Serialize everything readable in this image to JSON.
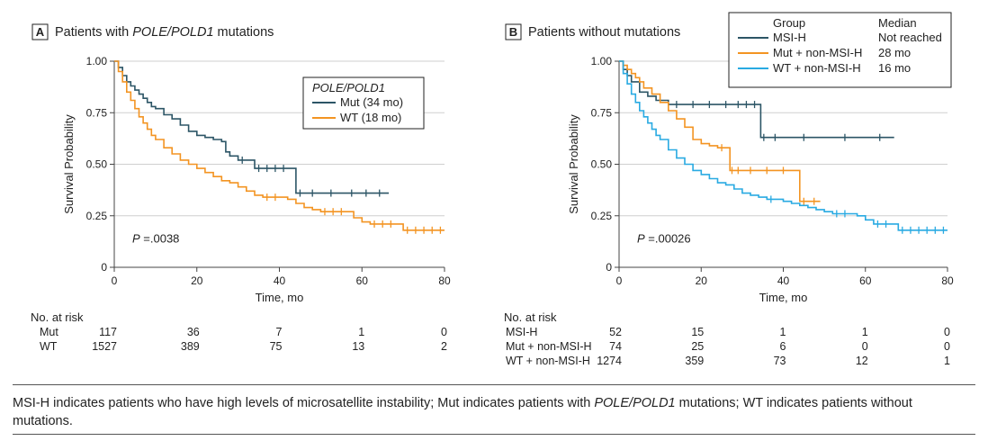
{
  "chart_data": [
    {
      "type": "line",
      "panel_letter": "A",
      "title": "Patients with ",
      "title_italic": "POLE/POLD1",
      "title_suffix": " mutations",
      "xlabel": "Time, mo",
      "ylabel": "Survival Probability",
      "xlim": [
        0,
        80
      ],
      "ylim": [
        0,
        1
      ],
      "xticks": [
        "0",
        "20",
        "40",
        "60",
        "80"
      ],
      "yticks": [
        "0",
        "0.25",
        "0.50",
        "0.75",
        "1.00"
      ],
      "grid": "horizontal",
      "legend": {
        "title": "POLE/POLD1",
        "placement": "top-right",
        "entries": [
          {
            "name": "Mut (34 mo)",
            "color": "#2c5566"
          },
          {
            "name": "WT (18 mo)",
            "color": "#f39422"
          }
        ]
      },
      "annotation_p": "P",
      "annotation_value": " =.0038",
      "series": [
        {
          "name": "Mut",
          "color": "#2c5566",
          "x": [
            0,
            1,
            2,
            3,
            4,
            5,
            6,
            7,
            8,
            9,
            10,
            12,
            14,
            16,
            18,
            20,
            22,
            24,
            26,
            27,
            28,
            30,
            32,
            34,
            36,
            38,
            40,
            42,
            44,
            46,
            50,
            55,
            60,
            62,
            66.5
          ],
          "y": [
            1.0,
            0.97,
            0.93,
            0.9,
            0.88,
            0.86,
            0.84,
            0.82,
            0.8,
            0.78,
            0.77,
            0.74,
            0.72,
            0.69,
            0.66,
            0.64,
            0.63,
            0.62,
            0.61,
            0.56,
            0.54,
            0.52,
            0.52,
            0.48,
            0.48,
            0.48,
            0.48,
            0.48,
            0.36,
            0.36,
            0.36,
            0.36,
            0.36,
            0.36,
            0.36
          ]
        },
        {
          "name": "WT",
          "color": "#f39422",
          "x": [
            0,
            1,
            2,
            3,
            4,
            5,
            6,
            7,
            8,
            9,
            10,
            12,
            14,
            16,
            18,
            20,
            22,
            24,
            26,
            28,
            30,
            32,
            34,
            36,
            38,
            40,
            42,
            44,
            46,
            48,
            50,
            52,
            54,
            56,
            58,
            60,
            62,
            64,
            66,
            68,
            70,
            72,
            74,
            76,
            78,
            80
          ],
          "y": [
            1.0,
            0.95,
            0.9,
            0.85,
            0.81,
            0.77,
            0.73,
            0.7,
            0.67,
            0.64,
            0.62,
            0.58,
            0.55,
            0.52,
            0.5,
            0.48,
            0.46,
            0.44,
            0.42,
            0.41,
            0.39,
            0.37,
            0.35,
            0.34,
            0.34,
            0.34,
            0.33,
            0.31,
            0.29,
            0.28,
            0.27,
            0.27,
            0.27,
            0.27,
            0.24,
            0.22,
            0.21,
            0.21,
            0.21,
            0.21,
            0.18,
            0.18,
            0.18,
            0.18,
            0.18,
            0.18
          ]
        }
      ],
      "risk_table": {
        "header": "No. at risk",
        "times": [
          0,
          20,
          40,
          60,
          80
        ],
        "rows": [
          {
            "label": "Mut",
            "values": [
              "117",
              "36",
              "7",
              "1",
              "0"
            ]
          },
          {
            "label": "WT",
            "values": [
              "1527",
              "389",
              "75",
              "13",
              "2"
            ]
          }
        ]
      }
    },
    {
      "type": "line",
      "panel_letter": "B",
      "title": "Patients without mutations",
      "title_italic": "",
      "title_suffix": "",
      "xlabel": "Time, mo",
      "ylabel": "Survival Probability",
      "xlim": [
        0,
        80
      ],
      "ylim": [
        0,
        1
      ],
      "xticks": [
        "0",
        "20",
        "40",
        "60",
        "80"
      ],
      "yticks": [
        "0",
        "0.25",
        "0.50",
        "0.75",
        "1.00"
      ],
      "grid": "horizontal",
      "legend": {
        "title": "Group",
        "median_title": "Median",
        "placement": "top-right",
        "entries": [
          {
            "name": "MSI-H",
            "median": "Not reached",
            "color": "#2c5566"
          },
          {
            "name": "Mut + non-MSI-H",
            "median": "28 mo",
            "color": "#f39422"
          },
          {
            "name": "WT + non-MSI-H",
            "median": "16 mo",
            "color": "#29aae2"
          }
        ]
      },
      "annotation_p": "P",
      "annotation_value": " =.00026",
      "series": [
        {
          "name": "MSI-H",
          "color": "#2c5566",
          "x": [
            0,
            1,
            2,
            3,
            5,
            7,
            9,
            12,
            16,
            20,
            24,
            28,
            30,
            32,
            34,
            34.5,
            36,
            40,
            50,
            60,
            67
          ],
          "y": [
            1.0,
            0.96,
            0.93,
            0.9,
            0.85,
            0.83,
            0.81,
            0.79,
            0.79,
            0.79,
            0.79,
            0.79,
            0.79,
            0.79,
            0.79,
            0.63,
            0.63,
            0.63,
            0.63,
            0.63,
            0.63
          ]
        },
        {
          "name": "Mut + non-MSI-H",
          "color": "#f39422",
          "x": [
            0,
            1,
            2,
            3,
            4,
            5,
            6,
            8,
            10,
            12,
            14,
            16,
            18,
            20,
            22,
            24,
            26,
            27,
            28,
            30,
            34,
            38,
            42,
            44,
            46,
            49
          ],
          "y": [
            1.0,
            0.98,
            0.96,
            0.94,
            0.92,
            0.9,
            0.87,
            0.84,
            0.8,
            0.76,
            0.72,
            0.68,
            0.62,
            0.6,
            0.59,
            0.58,
            0.58,
            0.47,
            0.47,
            0.47,
            0.47,
            0.47,
            0.47,
            0.32,
            0.32,
            0.32
          ]
        },
        {
          "name": "WT + non-MSI-H",
          "color": "#29aae2",
          "x": [
            0,
            1,
            2,
            3,
            4,
            5,
            6,
            7,
            8,
            9,
            10,
            12,
            14,
            16,
            18,
            20,
            22,
            24,
            26,
            28,
            30,
            32,
            34,
            36,
            38,
            40,
            42,
            44,
            46,
            48,
            50,
            52,
            54,
            56,
            58,
            60,
            62,
            64,
            66,
            68,
            70,
            72,
            74,
            76,
            78,
            80
          ],
          "y": [
            1.0,
            0.94,
            0.89,
            0.84,
            0.8,
            0.76,
            0.73,
            0.7,
            0.67,
            0.64,
            0.62,
            0.57,
            0.53,
            0.5,
            0.47,
            0.45,
            0.43,
            0.41,
            0.4,
            0.38,
            0.36,
            0.35,
            0.34,
            0.33,
            0.33,
            0.32,
            0.31,
            0.3,
            0.29,
            0.28,
            0.27,
            0.26,
            0.26,
            0.26,
            0.25,
            0.23,
            0.21,
            0.21,
            0.21,
            0.18,
            0.18,
            0.18,
            0.18,
            0.18,
            0.18,
            0.18
          ]
        }
      ],
      "risk_table": {
        "header": "No. at risk",
        "times": [
          0,
          20,
          40,
          60,
          80
        ],
        "rows": [
          {
            "label": "MSI-H",
            "values": [
              "52",
              "15",
              "1",
              "1",
              "0"
            ]
          },
          {
            "label": "Mut + non-MSI-H",
            "values": [
              "74",
              "25",
              "6",
              "0",
              "0"
            ]
          },
          {
            "label": "WT + non-MSI-H",
            "values": [
              "1274",
              "359",
              "73",
              "12",
              "1"
            ]
          }
        ]
      }
    }
  ],
  "caption": {
    "part1": "MSI-H indicates patients who have high levels of microsatellite instability; Mut indicates patients with ",
    "italic": "POLE/POLD1",
    "part2": " mutations; WT indicates patients without mutations."
  }
}
